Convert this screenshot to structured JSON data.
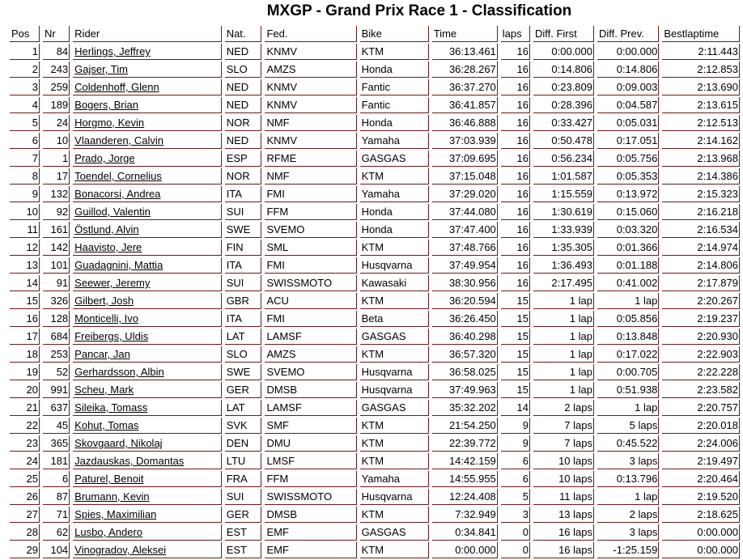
{
  "title": "MXGP - Grand Prix Race 1 - Classification",
  "columns": [
    "Pos",
    "Nr",
    "Rider",
    "Nat.",
    "Fed.",
    "Bike",
    "Time",
    "laps",
    "Diff. First",
    "Diff. Prev.",
    "Bestlaptime"
  ],
  "rows": [
    [
      "1",
      "84",
      "Herlings, Jeffrey",
      "NED",
      "KNMV",
      "KTM",
      "36:13.461",
      "16",
      "0:00.000",
      "0:00.000",
      "2:11.443"
    ],
    [
      "2",
      "243",
      "Gajser, Tim",
      "SLO",
      "AMZS",
      "Honda",
      "36:28.267",
      "16",
      "0:14.806",
      "0:14.806",
      "2:12.853"
    ],
    [
      "3",
      "259",
      "Coldenhoff, Glenn",
      "NED",
      "KNMV",
      "Fantic",
      "36:37.270",
      "16",
      "0:23.809",
      "0:09.003",
      "2:13.690"
    ],
    [
      "4",
      "189",
      "Bogers, Brian",
      "NED",
      "KNMV",
      "Fantic",
      "36:41.857",
      "16",
      "0:28.396",
      "0:04.587",
      "2:13.615"
    ],
    [
      "5",
      "24",
      "Horgmo, Kevin",
      "NOR",
      "NMF",
      "Honda",
      "36:46.888",
      "16",
      "0:33.427",
      "0:05.031",
      "2:12.513"
    ],
    [
      "6",
      "10",
      "Vlaanderen, Calvin",
      "NED",
      "KNMV",
      "Yamaha",
      "37:03.939",
      "16",
      "0:50.478",
      "0:17.051",
      "2:14.162"
    ],
    [
      "7",
      "1",
      "Prado, Jorge",
      "ESP",
      "RFME",
      "GASGAS",
      "37:09.695",
      "16",
      "0:56.234",
      "0:05.756",
      "2:13.968"
    ],
    [
      "8",
      "17",
      "Toendel, Cornelius",
      "NOR",
      "NMF",
      "KTM",
      "37:15.048",
      "16",
      "1:01.587",
      "0:05.353",
      "2:14.386"
    ],
    [
      "9",
      "132",
      "Bonacorsi, Andrea",
      "ITA",
      "FMI",
      "Yamaha",
      "37:29.020",
      "16",
      "1:15.559",
      "0:13.972",
      "2:15.323"
    ],
    [
      "10",
      "92",
      "Guillod, Valentin",
      "SUI",
      "FFM",
      "Honda",
      "37:44.080",
      "16",
      "1:30.619",
      "0:15.060",
      "2:16.218"
    ],
    [
      "11",
      "161",
      "Östlund, Alvin",
      "SWE",
      "SVEMO",
      "Honda",
      "37:47.400",
      "16",
      "1:33.939",
      "0:03.320",
      "2:16.534"
    ],
    [
      "12",
      "142",
      "Haavisto, Jere",
      "FIN",
      "SML",
      "KTM",
      "37:48.766",
      "16",
      "1:35.305",
      "0:01.366",
      "2:14.974"
    ],
    [
      "13",
      "101",
      "Guadagnini, Mattia",
      "ITA",
      "FMI",
      "Husqvarna",
      "37:49.954",
      "16",
      "1:36.493",
      "0:01.188",
      "2:14.806"
    ],
    [
      "14",
      "91",
      "Seewer, Jeremy",
      "SUI",
      "SWISSMOTO",
      "Kawasaki",
      "38:30.956",
      "16",
      "2:17.495",
      "0:41.002",
      "2:17.879"
    ],
    [
      "15",
      "326",
      "Gilbert, Josh",
      "GBR",
      "ACU",
      "KTM",
      "36:20.594",
      "15",
      "1 lap",
      "1 lap",
      "2:20.267"
    ],
    [
      "16",
      "128",
      "Monticelli, Ivo",
      "ITA",
      "FMI",
      "Beta",
      "36:26.450",
      "15",
      "1 lap",
      "0:05.856",
      "2:19.237"
    ],
    [
      "17",
      "684",
      "Freibergs, Uldis",
      "LAT",
      "LAMSF",
      "GASGAS",
      "36:40.298",
      "15",
      "1 lap",
      "0:13.848",
      "2:20.930"
    ],
    [
      "18",
      "253",
      "Pancar, Jan",
      "SLO",
      "AMZS",
      "KTM",
      "36:57.320",
      "15",
      "1 lap",
      "0:17.022",
      "2:22.903"
    ],
    [
      "19",
      "52",
      "Gerhardsson, Albin",
      "SWE",
      "SVEMO",
      "Husqvarna",
      "36:58.025",
      "15",
      "1 lap",
      "0:00.705",
      "2:22.228"
    ],
    [
      "20",
      "991",
      "Scheu, Mark",
      "GER",
      "DMSB",
      "Husqvarna",
      "37:49.963",
      "15",
      "1 lap",
      "0:51.938",
      "2:23.582"
    ],
    [
      "21",
      "637",
      "Sileika, Tomass",
      "LAT",
      "LAMSF",
      "GASGAS",
      "35:32.202",
      "14",
      "2 laps",
      "1 lap",
      "2:20.757"
    ],
    [
      "22",
      "45",
      "Kohut, Tomas",
      "SVK",
      "SMF",
      "KTM",
      "21:54.250",
      "9",
      "7 laps",
      "5 laps",
      "2:20.018"
    ],
    [
      "23",
      "365",
      "Skovgaard, Nikolaj",
      "DEN",
      "DMU",
      "KTM",
      "22:39.772",
      "9",
      "7 laps",
      "0:45.522",
      "2:24.006"
    ],
    [
      "24",
      "181",
      "Jazdauskas, Domantas",
      "LTU",
      "LMSF",
      "KTM",
      "14:42.159",
      "6",
      "10 laps",
      "3 laps",
      "2:19.497"
    ],
    [
      "25",
      "6",
      "Paturel, Benoit",
      "FRA",
      "FFM",
      "Yamaha",
      "14:55.955",
      "6",
      "10 laps",
      "0:13.796",
      "2:20.464"
    ],
    [
      "26",
      "87",
      "Brumann, Kevin",
      "SUI",
      "SWISSMOTO",
      "Husqvarna",
      "12:24.408",
      "5",
      "11 laps",
      "1 lap",
      "2:19.520"
    ],
    [
      "27",
      "71",
      "Spies, Maximilian",
      "GER",
      "DMSB",
      "KTM",
      "7:32.949",
      "3",
      "13 laps",
      "2 laps",
      "2:18.625"
    ],
    [
      "28",
      "62",
      "Lusbo, Andero",
      "EST",
      "EMF",
      "GASGAS",
      "0:34.841",
      "0",
      "16 laps",
      "3 laps",
      "0:00.000"
    ],
    [
      "29",
      "104",
      "Vinogradov, Aleksei",
      "EST",
      "EMF",
      "KTM",
      "0:00.000",
      "0",
      "16 laps",
      "-1:25.159",
      "0:00.000"
    ]
  ]
}
